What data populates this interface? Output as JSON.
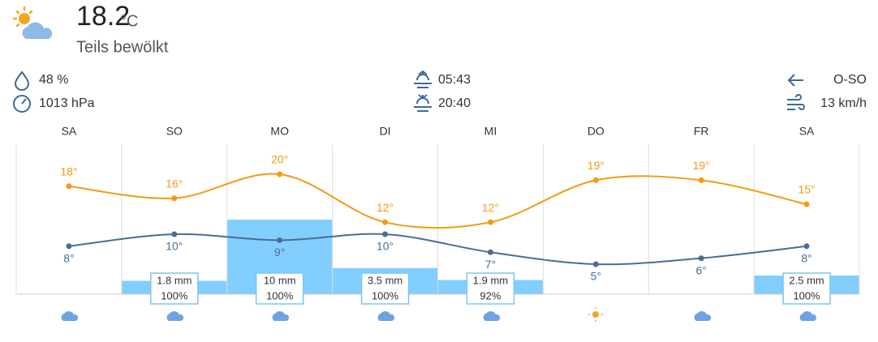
{
  "current": {
    "temperature": "18.2",
    "unit": "°C",
    "condition": "Teils bewölkt",
    "humidity": "48 %",
    "pressure": "1013 hPa",
    "sunrise": "05:43",
    "sunset": "20:40",
    "wind_direction": "O-SO",
    "wind_speed": "13 km/h"
  },
  "chart_data": {
    "type": "line",
    "categories": [
      "SA",
      "SO",
      "MO",
      "DI",
      "MI",
      "DO",
      "FR",
      "SA"
    ],
    "series": [
      {
        "color": "#f29b13",
        "values": [
          18,
          16,
          20,
          12,
          12,
          19,
          19,
          15
        ],
        "value_labels": [
          "18°",
          "16°",
          "20°",
          "12°",
          "12°",
          "19°",
          "19°",
          "15°"
        ]
      },
      {
        "color": "#4b6d94",
        "values": [
          8,
          10,
          9,
          10,
          7,
          5,
          6,
          8
        ],
        "value_labels": [
          "8°",
          "10°",
          "9°",
          "10°",
          "7°",
          "5°",
          "6°",
          "8°"
        ]
      }
    ],
    "bars": {
      "color": "#82cfff",
      "values": [
        null,
        1.8,
        10,
        3.5,
        1.9,
        null,
        null,
        2.5
      ],
      "value_labels": [
        null,
        "1.8 mm",
        "10 mm",
        "3.5 mm",
        "1.9 mm",
        null,
        null,
        "2.5 mm"
      ],
      "probability_labels": [
        null,
        "100%",
        "100%",
        "100%",
        "92%",
        null,
        null,
        "100%"
      ]
    }
  }
}
